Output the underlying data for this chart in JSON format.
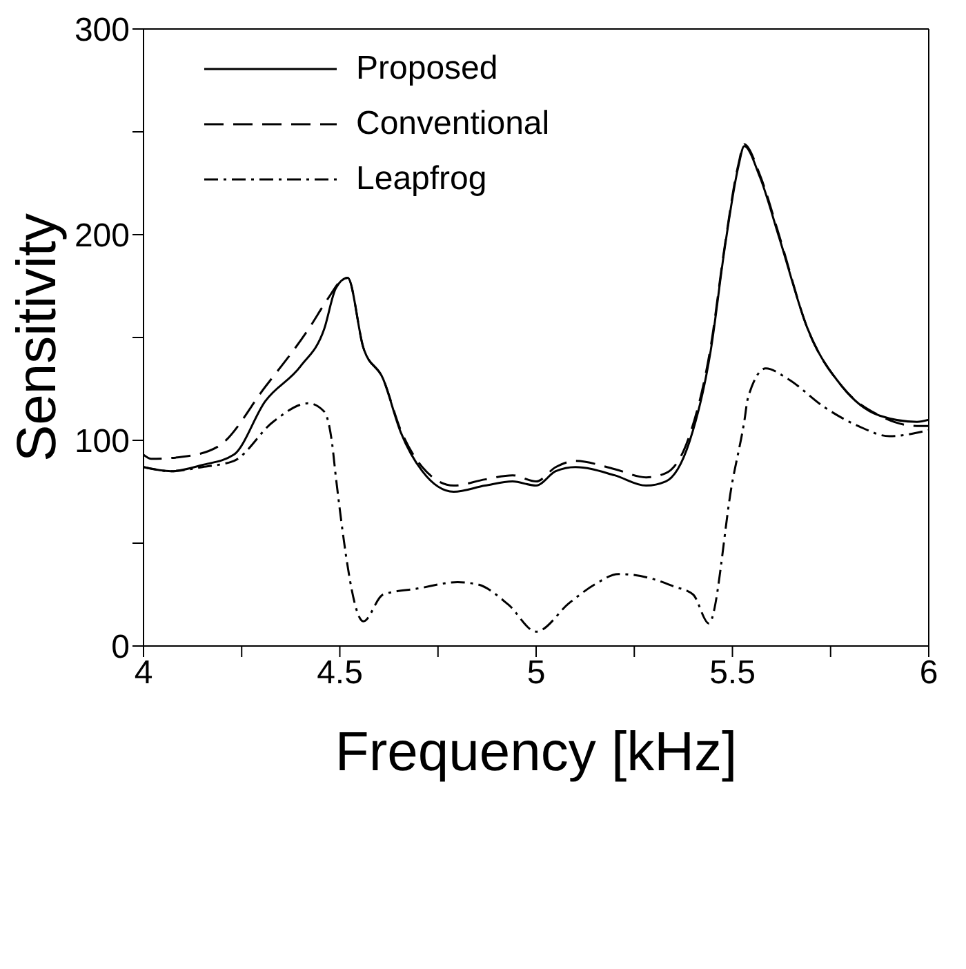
{
  "chart_data": {
    "type": "line",
    "xlabel": "Frequency [kHz]",
    "ylabel": "Sensitivity",
    "xlim": [
      4,
      6
    ],
    "ylim": [
      0,
      300
    ],
    "xticks": [
      4,
      {
        "value": 4.25,
        "label": null
      },
      4.5,
      {
        "value": 4.75,
        "label": null
      },
      5,
      {
        "value": 5.25,
        "label": null
      },
      5.5,
      {
        "value": 5.75,
        "label": null
      },
      6
    ],
    "yticks": [
      0,
      {
        "value": 50,
        "label": null
      },
      100,
      {
        "value": 150,
        "label": null
      },
      200,
      {
        "value": 250,
        "label": null
      },
      300
    ],
    "legend": "top left",
    "marker": "none",
    "series": [
      {
        "name": "Proposed",
        "color": "#000000",
        "line_style": "solid",
        "x": [
          4,
          4.07,
          4.15,
          4.23,
          4.31,
          4.4,
          4.46,
          4.49,
          4.52,
          4.56,
          4.61,
          4.655,
          4.71,
          4.79,
          4.87,
          4.94,
          5,
          5.05,
          5.1,
          5.2,
          5.28,
          5.33,
          5.39,
          5.445,
          5.48,
          5.515,
          5.53,
          5.57,
          5.62,
          5.69,
          5.78,
          5.875,
          5.97,
          6
        ],
        "values": [
          87,
          85,
          88,
          93,
          119,
          136,
          154,
          174,
          179,
          145,
          130,
          104,
          85,
          75,
          78,
          80,
          78,
          85,
          87,
          83,
          78,
          80,
          99,
          144,
          193,
          233,
          243,
          228,
          198,
          155,
          126,
          112,
          109,
          110
        ]
      },
      {
        "name": "Conventional",
        "color": "#000000",
        "line_style": "dashed",
        "x": [
          4,
          4.02,
          4.1,
          4.19,
          4.31,
          4.42,
          4.47,
          4.505,
          4.52,
          4.56,
          4.61,
          4.655,
          4.71,
          4.79,
          4.87,
          4.94,
          5,
          5.05,
          5.1,
          5.2,
          5.28,
          5.33,
          5.39,
          5.445,
          5.48,
          5.515,
          5.53,
          5.57,
          5.62,
          5.69,
          5.78,
          5.875,
          5.97,
          6
        ],
        "values": [
          93,
          91,
          92,
          97,
          126,
          154,
          169,
          178,
          179,
          145,
          130,
          105,
          87,
          78,
          81,
          83,
          80,
          87,
          90,
          86,
          82,
          84,
          102,
          146,
          194,
          234,
          244,
          229,
          199,
          155,
          126,
          112,
          107,
          107
        ]
      },
      {
        "name": "Leapfrog",
        "color": "#000000",
        "line_style": "dashdot",
        "x": [
          4,
          4.07,
          4.15,
          4.23,
          4.33,
          4.42,
          4.46,
          4.48,
          4.49,
          4.56,
          4.61,
          4.7,
          4.8,
          4.85,
          4.93,
          5,
          5.085,
          5.15,
          5.21,
          5.29,
          5.35,
          5.4,
          5.44,
          5.5,
          5.53,
          5.54,
          5.585,
          5.64,
          5.735,
          5.82,
          5.9,
          6
        ],
        "values": [
          87,
          85,
          87,
          90,
          109,
          118,
          114,
          99,
          82,
          12,
          25,
          28,
          31,
          30,
          20,
          7,
          21,
          30,
          35,
          33,
          29,
          25,
          11,
          80,
          109,
          121,
          135,
          130,
          116,
          107,
          102,
          105
        ]
      }
    ]
  }
}
